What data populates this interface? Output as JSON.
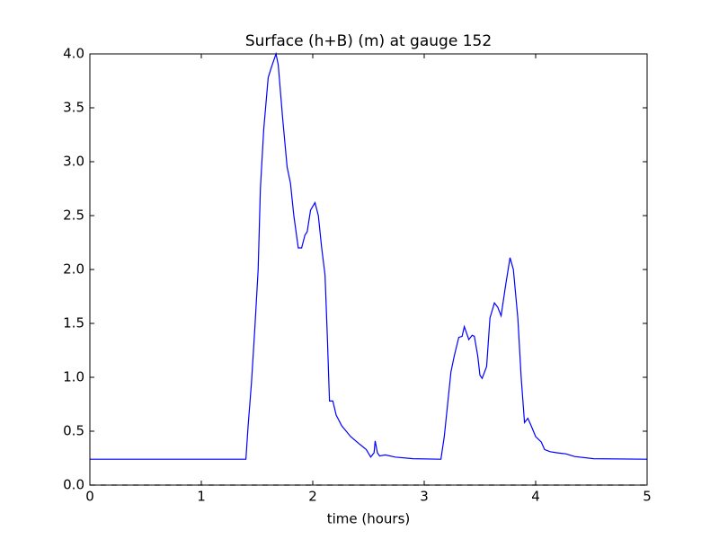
{
  "chart_data": {
    "type": "line",
    "title": "Surface (h+B) (m) at gauge 152",
    "xlabel": "time (hours)",
    "x": [
      0,
      1.4,
      1.42,
      1.45,
      1.48,
      1.51,
      1.53,
      1.56,
      1.6,
      1.63,
      1.67,
      1.69,
      1.73,
      1.77,
      1.8,
      1.83,
      1.87,
      1.9,
      1.93,
      1.95,
      1.98,
      2.02,
      2.05,
      2.08,
      2.11,
      2.13,
      2.15,
      2.18,
      2.21,
      2.26,
      2.34,
      2.42,
      2.48,
      2.52,
      2.55,
      2.56,
      2.58,
      2.6,
      2.65,
      2.74,
      2.9,
      3.15,
      3.18,
      3.21,
      3.24,
      3.27,
      3.31,
      3.34,
      3.36,
      3.4,
      3.43,
      3.45,
      3.48,
      3.5,
      3.52,
      3.56,
      3.59,
      3.63,
      3.66,
      3.69,
      3.73,
      3.77,
      3.8,
      3.84,
      3.87,
      3.9,
      3.93,
      3.96,
      4.0,
      4.05,
      4.08,
      4.13,
      4.19,
      4.23,
      4.27,
      4.35,
      4.52,
      5.0
    ],
    "series": [
      {
        "color": "#0000ff",
        "values": [
          0.24,
          0.24,
          0.55,
          0.95,
          1.45,
          2.0,
          2.75,
          3.3,
          3.78,
          3.88,
          4.0,
          3.9,
          3.4,
          2.95,
          2.8,
          2.5,
          2.2,
          2.2,
          2.32,
          2.35,
          2.55,
          2.62,
          2.5,
          2.2,
          1.95,
          1.4,
          0.78,
          0.78,
          0.65,
          0.55,
          0.45,
          0.38,
          0.33,
          0.26,
          0.3,
          0.41,
          0.3,
          0.27,
          0.28,
          0.26,
          0.245,
          0.24,
          0.45,
          0.75,
          1.05,
          1.2,
          1.37,
          1.38,
          1.47,
          1.35,
          1.39,
          1.38,
          1.2,
          1.02,
          0.99,
          1.1,
          1.55,
          1.69,
          1.65,
          1.57,
          1.85,
          2.11,
          2.0,
          1.55,
          1.0,
          0.58,
          0.62,
          0.55,
          0.45,
          0.4,
          0.33,
          0.31,
          0.3,
          0.295,
          0.29,
          0.265,
          0.245,
          0.24
        ]
      }
    ],
    "hline": {
      "value": 0,
      "color": "#000000",
      "dashed": true
    },
    "xlim": [
      0,
      5
    ],
    "xticks": [
      0,
      1,
      2,
      3,
      4,
      5
    ],
    "ylim": [
      0,
      4
    ],
    "yticks": [
      {
        "value": 0,
        "label": "0.0"
      },
      0.5,
      {
        "value": 1,
        "label": "1.0"
      },
      1.5,
      {
        "value": 2,
        "label": "2.0"
      },
      2.5,
      {
        "value": 3,
        "label": "3.0"
      },
      3.5,
      {
        "value": 4,
        "label": "4.0"
      }
    ],
    "grid": false
  }
}
